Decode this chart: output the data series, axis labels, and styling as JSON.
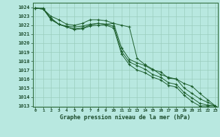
{
  "xlabel": "Graphe pression niveau de la mer (hPa)",
  "background_color": "#b8e8e0",
  "grid_color": "#99ccbb",
  "line_color": "#1a5c2a",
  "ylim": [
    1013,
    1024.5
  ],
  "xlim": [
    -0.3,
    23.3
  ],
  "yticks": [
    1013,
    1014,
    1015,
    1016,
    1017,
    1018,
    1019,
    1020,
    1021,
    1022,
    1023,
    1024
  ],
  "xticks": [
    0,
    1,
    2,
    3,
    4,
    5,
    6,
    7,
    8,
    9,
    10,
    11,
    12,
    13,
    14,
    15,
    16,
    17,
    18,
    19,
    20,
    21,
    22,
    23
  ],
  "xtick_labels": [
    "0",
    "1",
    "2",
    "3",
    "4",
    "5",
    "6",
    "7",
    "8",
    "9",
    "10",
    "11",
    "12",
    "13",
    "14",
    "15",
    "16",
    "17",
    "18",
    "19",
    "20",
    "21",
    "22",
    "23"
  ],
  "line1": [
    1023.9,
    1023.8,
    1023.0,
    1022.6,
    1022.1,
    1022.0,
    1022.2,
    1022.6,
    1022.6,
    1022.5,
    1022.2,
    1019.5,
    1018.2,
    1017.8,
    1017.5,
    1017.0,
    1016.8,
    1016.1,
    1016.0,
    1015.0,
    1014.4,
    1013.8,
    1013.4,
    1013.0
  ],
  "line2": [
    1023.9,
    1023.8,
    1022.6,
    1022.1,
    1021.9,
    1021.8,
    1021.9,
    1022.1,
    1022.2,
    1022.1,
    1022.2,
    1022.0,
    1021.8,
    1018.3,
    1017.6,
    1017.1,
    1016.5,
    1016.2,
    1016.0,
    1015.5,
    1015.2,
    1014.4,
    1013.7,
    1013.0
  ],
  "line3": [
    1023.9,
    1023.9,
    1022.7,
    1022.1,
    1021.8,
    1021.6,
    1021.7,
    1022.0,
    1022.2,
    1022.1,
    1021.9,
    1019.1,
    1017.9,
    1017.5,
    1017.1,
    1016.5,
    1016.2,
    1015.6,
    1015.4,
    1014.5,
    1013.9,
    1013.3,
    1013.1,
    1013.0
  ],
  "line4": [
    1023.9,
    1023.8,
    1022.8,
    1022.1,
    1021.8,
    1021.5,
    1021.6,
    1021.9,
    1022.0,
    1022.0,
    1021.7,
    1018.8,
    1017.6,
    1017.0,
    1016.7,
    1016.2,
    1015.9,
    1015.3,
    1015.1,
    1014.2,
    1013.5,
    1013.0,
    1013.0,
    1013.0
  ]
}
